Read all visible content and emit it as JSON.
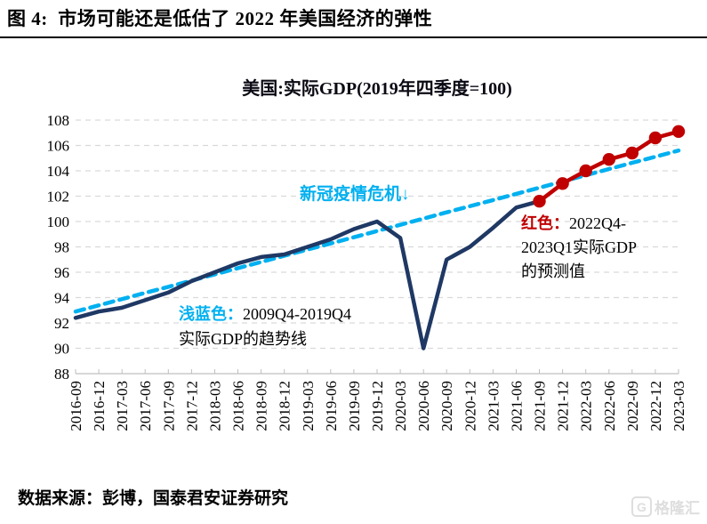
{
  "page": {
    "figure_title": "图 4:  市场可能还是低估了 2022 年美国经济的弹性",
    "source": "数据来源：彭博，国泰君安证券研究",
    "logo": {
      "g": "G",
      "text": "格隆汇"
    }
  },
  "chart_data": {
    "type": "line",
    "title": "美国:实际GDP(2019年四季度=100)",
    "ylim": [
      88,
      108
    ],
    "ytick_step": 2,
    "grid": "horizontal-dashed",
    "legend_position": "none",
    "categories": [
      "2016-09",
      "2016-12",
      "2017-03",
      "2017-06",
      "2017-09",
      "2017-12",
      "2018-03",
      "2018-06",
      "2018-09",
      "2018-12",
      "2019-03",
      "2019-06",
      "2019-09",
      "2019-12",
      "2020-03",
      "2020-06",
      "2020-09",
      "2020-12",
      "2021-03",
      "2021-06",
      "2021-09",
      "2021-12",
      "2022-03",
      "2022-06",
      "2022-09",
      "2022-12",
      "2023-03"
    ],
    "series": [
      {
        "name": "2009Q4-2019Q4实际GDP的趋势线",
        "role": "trend",
        "color": "#00B0F0",
        "dash": "10 7",
        "marker": false,
        "values": [
          92.9,
          93.39,
          93.88,
          94.37,
          94.85,
          95.34,
          95.83,
          96.32,
          96.81,
          97.3,
          97.79,
          98.27,
          98.76,
          99.25,
          99.74,
          100.23,
          100.72,
          101.21,
          101.69,
          102.18,
          102.67,
          103.16,
          103.65,
          104.14,
          104.63,
          105.11,
          105.6
        ]
      },
      {
        "name": "实际GDP",
        "role": "actual",
        "color": "#1F3864",
        "dash": null,
        "marker": false,
        "values": [
          92.4,
          92.9,
          93.2,
          93.8,
          94.4,
          95.3,
          96.0,
          96.7,
          97.2,
          97.4,
          98.0,
          98.6,
          99.4,
          100.0,
          98.7,
          90.0,
          97.0,
          98.0,
          99.5,
          101.1,
          101.6,
          null,
          null,
          null,
          null,
          null,
          null
        ]
      },
      {
        "name": "2022Q4-2023Q1实际GDP的预测值",
        "role": "forecast",
        "color": "#C00000",
        "dash": null,
        "marker": true,
        "values": [
          null,
          null,
          null,
          null,
          null,
          null,
          null,
          null,
          null,
          null,
          null,
          null,
          null,
          null,
          null,
          null,
          null,
          null,
          null,
          null,
          101.6,
          103.0,
          104.0,
          104.9,
          105.4,
          106.6,
          107.1
        ]
      }
    ],
    "annotations": {
      "covid": {
        "text": "新冠疫情危机↓",
        "color": "#00B0F0"
      },
      "blue_note": {
        "prefix": "浅蓝色：",
        "prefix_color": "#00B0F0",
        "line1": "2009Q4-2019Q4",
        "line2": "实际GDP的趋势线",
        "text_color": "#000000"
      },
      "red_note": {
        "prefix": "红色：",
        "prefix_color": "#C00000",
        "line1": "2022Q4-",
        "line2": "2023Q1实际GDP",
        "line3": "的预测值",
        "text_color": "#000000"
      }
    },
    "axis_style": {
      "grid_color": "#D9D9D9",
      "axis_color": "#BFBFBF",
      "label_color": "#000000",
      "ylabel_font_px": 17,
      "xlabel_font_px": 17
    }
  }
}
